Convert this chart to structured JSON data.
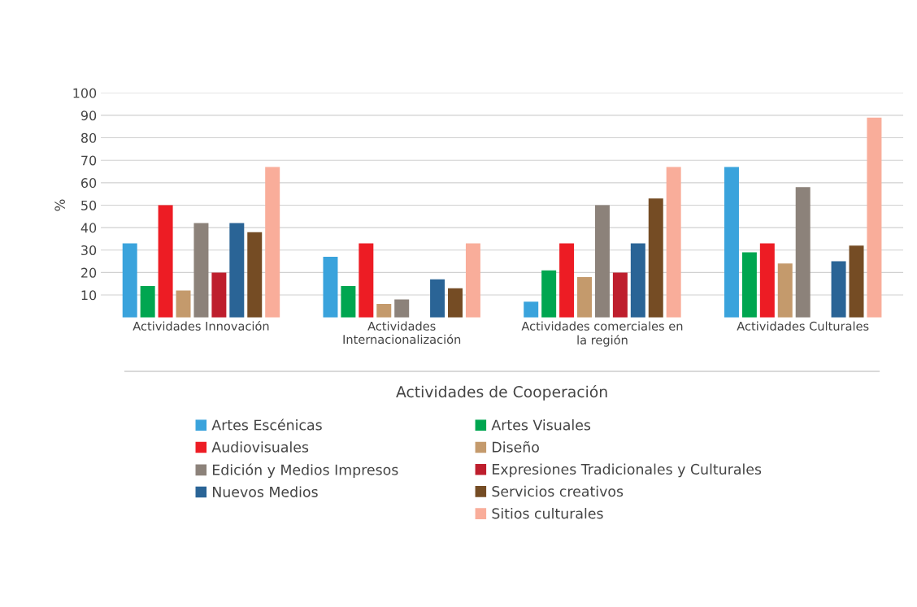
{
  "chart_data": {
    "type": "bar",
    "ylabel": "%",
    "xlabel": "Actividades de Cooperación",
    "categories": [
      "Actividades Innovación",
      "Actividades Internacionalización",
      "Actividades comerciales en la región",
      "Actividades Culturales"
    ],
    "series": [
      {
        "name": "Artes Escénicas",
        "color": "#3aa3dc",
        "values": [
          33,
          27,
          7,
          67
        ]
      },
      {
        "name": "Artes Visuales",
        "color": "#00a650",
        "values": [
          14,
          14,
          21,
          29
        ]
      },
      {
        "name": "Audiovisuales",
        "color": "#ed1c24",
        "values": [
          50,
          33,
          33,
          33
        ]
      },
      {
        "name": "Diseño",
        "color": "#c49a6c",
        "values": [
          12,
          6,
          18,
          24
        ]
      },
      {
        "name": "Edición y Medios Impresos",
        "color": "#8c827a",
        "values": [
          42,
          8,
          50,
          58
        ]
      },
      {
        "name": "Expresiones Tradicionales y Culturales",
        "color": "#be1e2d",
        "values": [
          20,
          null,
          20,
          null
        ]
      },
      {
        "name": "Nuevos Medios",
        "color": "#2a6496",
        "values": [
          42,
          17,
          33,
          25
        ]
      },
      {
        "name": "Servicios creativos",
        "color": "#754c24",
        "values": [
          38,
          13,
          53,
          32
        ]
      },
      {
        "name": "Sitios culturales",
        "color": "#f9ad9a",
        "values": [
          67,
          33,
          67,
          89
        ]
      }
    ],
    "ylim": [
      0,
      100
    ],
    "yticks": [
      10,
      20,
      30,
      40,
      50,
      60,
      70,
      80,
      90,
      100
    ],
    "grid": "y",
    "legend": "bottom"
  }
}
